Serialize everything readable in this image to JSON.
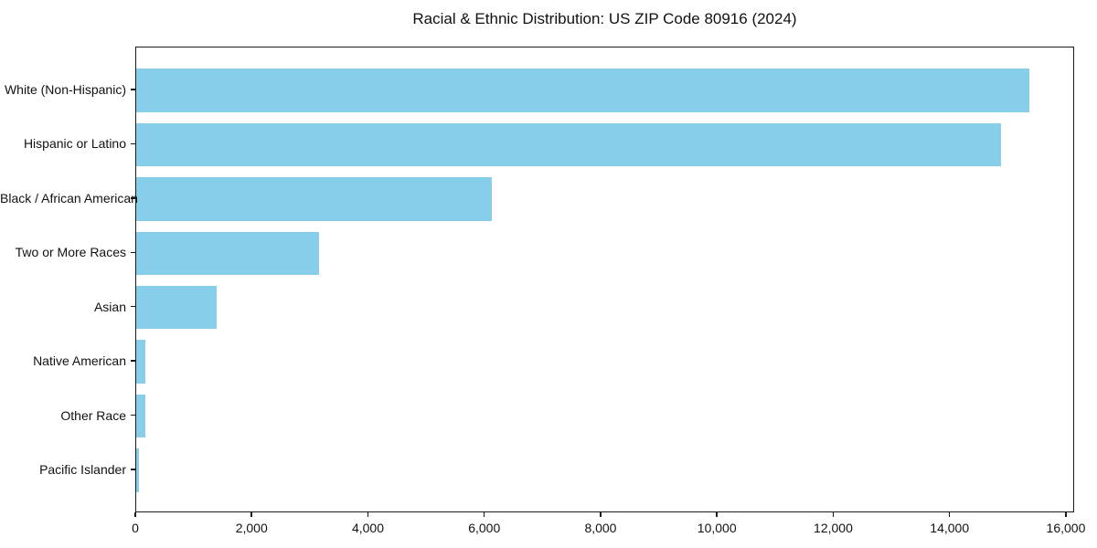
{
  "chart_data": {
    "type": "bar",
    "orientation": "horizontal",
    "title": "Racial & Ethnic Distribution: US ZIP Code 80916 (2024)",
    "categories": [
      "White (Non-Hispanic)",
      "Hispanic or Latino",
      "Black / African American",
      "Two or More Races",
      "Asian",
      "Native American",
      "Other Race",
      "Pacific Islander"
    ],
    "values": [
      15360,
      14870,
      6110,
      3140,
      1390,
      150,
      150,
      40
    ],
    "xlabel": "",
    "ylabel": "",
    "xlim": [
      0,
      16142
    ],
    "xticks": [
      0,
      2000,
      4000,
      6000,
      8000,
      10000,
      12000,
      14000,
      16000
    ],
    "xtick_labels": [
      "0",
      "2,000",
      "4,000",
      "6,000",
      "8,000",
      "10,000",
      "12,000",
      "14,000",
      "16,000"
    ],
    "bar_color": "#87CEEB",
    "spine_color": "#1a1a1a",
    "grid": false,
    "legend_position": "none"
  }
}
